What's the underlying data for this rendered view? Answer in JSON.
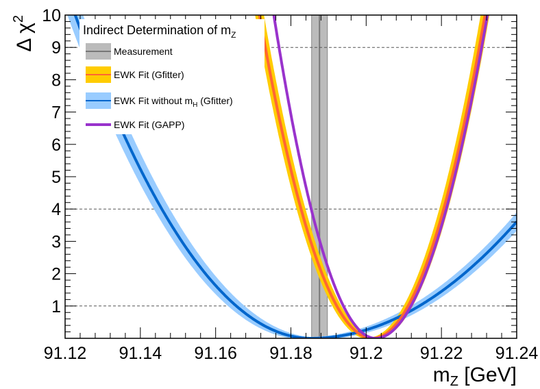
{
  "chart_data": {
    "type": "line",
    "title": "Indirect Determination of m_Z",
    "legend": {
      "placement": "top-left",
      "title_main": "Indirect Determination of m",
      "title_sub": "Z",
      "entries": [
        {
          "label": "Measurement",
          "sub": "",
          "tail": ""
        },
        {
          "label": "EWK Fit (Gfitter)",
          "sub": "",
          "tail": ""
        },
        {
          "label": "EWK Fit without m",
          "sub": "H",
          "tail": " (Gfitter)"
        },
        {
          "label": "EWK Fit (GAPP)",
          "sub": "",
          "tail": ""
        }
      ]
    },
    "xlabel": {
      "main": "m",
      "sub": "Z",
      "tail": " [GeV]"
    },
    "ylabel": {
      "main": "Δ χ",
      "sup": "2"
    },
    "xlim": [
      91.12,
      91.24
    ],
    "ylim": [
      0,
      10
    ],
    "x_ticks": [
      91.12,
      91.14,
      91.16,
      91.18,
      91.2,
      91.22,
      91.24
    ],
    "x_tick_labels": [
      "91.12",
      "91.14",
      "91.16",
      "91.18",
      "91.2",
      "91.22",
      "91.24"
    ],
    "y_ticks": [
      1,
      2,
      3,
      4,
      5,
      6,
      7,
      8,
      9,
      10
    ],
    "y_tick_labels": [
      "1",
      "2",
      "3",
      "4",
      "5",
      "6",
      "7",
      "8",
      "9",
      "10"
    ],
    "reference_lines_y": [
      1,
      4,
      9
    ],
    "measurement": {
      "central": 91.1876,
      "band": [
        91.1855,
        91.1897
      ]
    },
    "series": [
      {
        "name": "EWK Fit without m_H (Gfitter)",
        "kind": "parabola",
        "min_x": 91.1853,
        "sigma_left": 0.0198,
        "sigma_right": 0.0288,
        "line_color": "#0066cc",
        "band_color": "#99ccff",
        "band_width_sigma": 0.0018
      },
      {
        "name": "EWK Fit (Gfitter)",
        "kind": "parabola",
        "min_x": 91.2017,
        "sigma_left": 0.0095,
        "sigma_right": 0.00945,
        "line_color": "#ff6633",
        "band_color": "#ffcc00",
        "band_width_sigma": 0.0009
      },
      {
        "name": "EWK Fit (GAPP)",
        "kind": "parabola",
        "min_x": 91.2025,
        "sigma_left": 0.00855,
        "sigma_right": 0.0094,
        "line_color": "#9933cc",
        "band_color": "",
        "band_width_sigma": 0
      }
    ],
    "colors": {
      "measurement_band": "#bbbbbb",
      "measurement_line": "#777777",
      "grid": "#555555"
    }
  }
}
